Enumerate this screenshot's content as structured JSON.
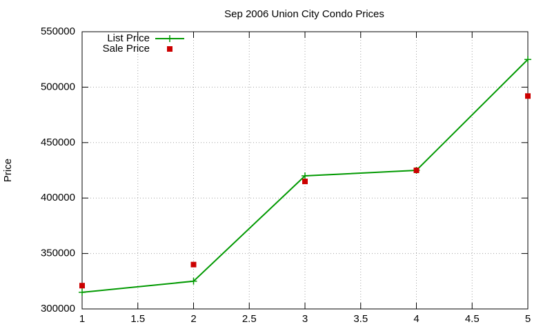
{
  "chart_data": {
    "type": "line",
    "title": "Sep 2006 Union City Condo Prices",
    "y_label": "Price",
    "x": [
      1,
      2,
      3,
      4,
      5
    ],
    "series": [
      {
        "name": "List Price",
        "color": "#009900",
        "line": true,
        "marker": "plus",
        "values": [
          315000,
          325000,
          420000,
          425000,
          525000
        ]
      },
      {
        "name": "Sale Price",
        "color": "#cc0000",
        "line": false,
        "marker": "square",
        "values": [
          321000,
          340000,
          415000,
          425000,
          492000
        ]
      }
    ],
    "xlim": [
      1,
      5
    ],
    "xticks": [
      1,
      1.5,
      2,
      2.5,
      3,
      3.5,
      4,
      4.5,
      5
    ],
    "ylim": [
      300000,
      550000
    ],
    "yticks": [
      300000,
      350000,
      400000,
      450000,
      500000,
      550000
    ],
    "grid": true,
    "legend": "top-left"
  }
}
